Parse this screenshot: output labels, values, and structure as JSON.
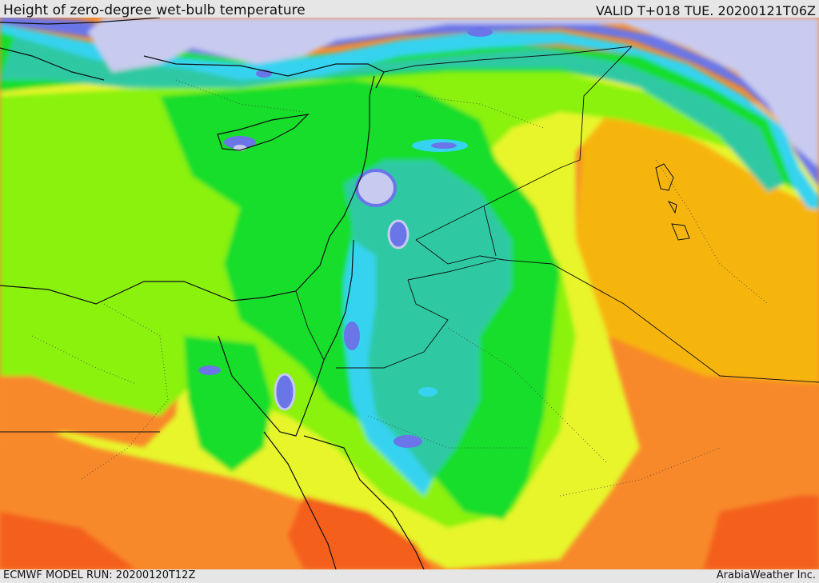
{
  "header": {
    "title": "Height of zero-degree wet-bulb temperature",
    "valid": "VALID T+018 TUE. 20200121T06Z"
  },
  "footer": {
    "model_run": "ECMWF MODEL RUN: 20200120T12Z",
    "credit": "ArabiaWeather Inc."
  },
  "map": {
    "field": "zero-degree wet-bulb height",
    "palette": [
      "#c8cbef",
      "#6a76e8",
      "#2f9df5",
      "#36d3f0",
      "#2ec9a3",
      "#19de2a",
      "#8af20a",
      "#e7f52c",
      "#f6b50f",
      "#f8892a",
      "#f45f1c"
    ]
  }
}
